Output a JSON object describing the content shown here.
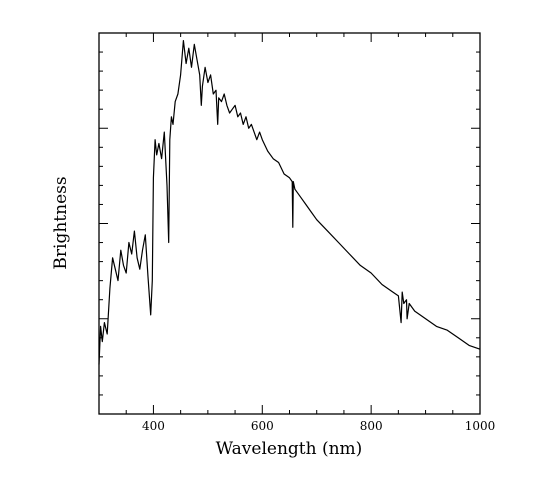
{
  "chart_data": {
    "type": "line",
    "xlabel": "Wavelength (nm)",
    "ylabel": "Brightness",
    "xlim": [
      300,
      1000
    ],
    "ylim": [
      0,
      1
    ],
    "x_ticks": [
      400,
      600,
      800,
      1000
    ],
    "y_tick_labels_shown": false,
    "grid": false,
    "legend": "none",
    "series": [
      {
        "color": "#000000",
        "x": [
          300,
          303,
          306,
          310,
          315,
          320,
          325,
          330,
          335,
          340,
          345,
          350,
          355,
          360,
          365,
          370,
          375,
          380,
          385,
          390,
          395,
          398,
          400,
          403,
          406,
          410,
          415,
          420,
          425,
          428,
          430,
          433,
          436,
          440,
          445,
          450,
          455,
          460,
          465,
          470,
          475,
          480,
          485,
          488,
          490,
          495,
          500,
          505,
          510,
          515,
          518,
          520,
          525,
          530,
          535,
          540,
          545,
          550,
          555,
          560,
          565,
          570,
          575,
          580,
          585,
          590,
          595,
          600,
          610,
          620,
          630,
          640,
          650,
          655,
          656,
          657,
          660,
          670,
          680,
          690,
          700,
          720,
          740,
          760,
          780,
          800,
          820,
          840,
          850,
          855,
          857,
          860,
          865,
          866,
          870,
          880,
          900,
          920,
          940,
          960,
          980,
          1000
        ],
        "y": [
          0.13,
          0.23,
          0.19,
          0.24,
          0.21,
          0.33,
          0.41,
          0.38,
          0.35,
          0.43,
          0.39,
          0.37,
          0.45,
          0.42,
          0.48,
          0.41,
          0.38,
          0.43,
          0.47,
          0.36,
          0.26,
          0.35,
          0.62,
          0.72,
          0.68,
          0.71,
          0.67,
          0.74,
          0.6,
          0.45,
          0.72,
          0.78,
          0.76,
          0.82,
          0.84,
          0.89,
          0.98,
          0.92,
          0.96,
          0.91,
          0.97,
          0.93,
          0.89,
          0.81,
          0.86,
          0.91,
          0.87,
          0.89,
          0.84,
          0.85,
          0.76,
          0.83,
          0.82,
          0.84,
          0.81,
          0.79,
          0.8,
          0.81,
          0.78,
          0.79,
          0.76,
          0.78,
          0.75,
          0.76,
          0.74,
          0.72,
          0.74,
          0.72,
          0.69,
          0.67,
          0.66,
          0.63,
          0.62,
          0.61,
          0.49,
          0.61,
          0.59,
          0.57,
          0.55,
          0.53,
          0.51,
          0.48,
          0.45,
          0.42,
          0.39,
          0.37,
          0.34,
          0.32,
          0.31,
          0.24,
          0.32,
          0.29,
          0.3,
          0.25,
          0.29,
          0.27,
          0.25,
          0.23,
          0.22,
          0.2,
          0.18,
          0.17
        ]
      }
    ]
  }
}
